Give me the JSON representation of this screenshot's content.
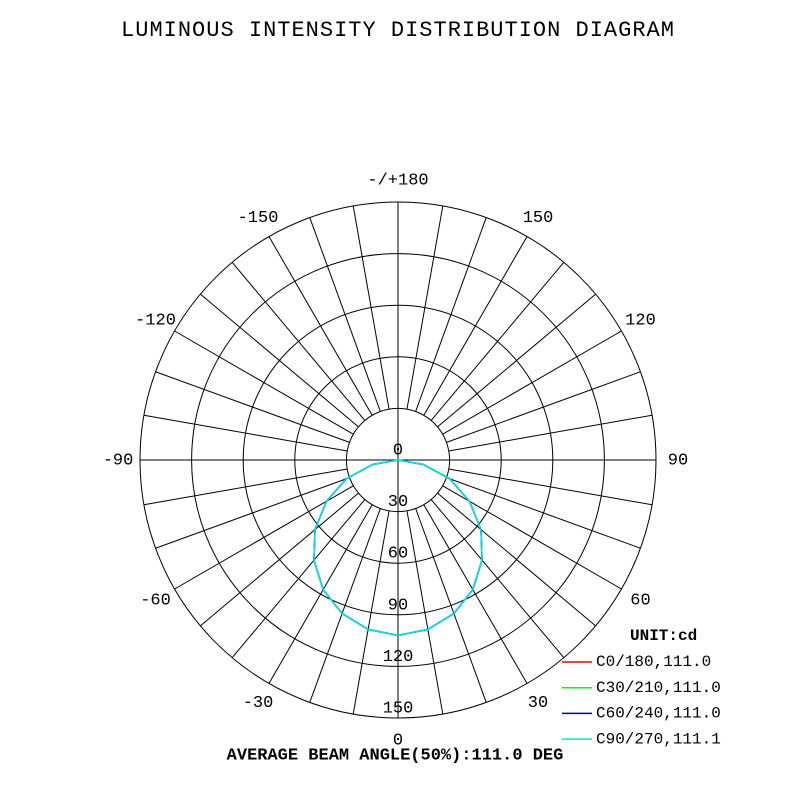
{
  "chart_data": {
    "type": "polar",
    "title": "LUMINOUS INTENSITY DISTRIBUTION DIAGRAM",
    "unit_label": "UNIT:cd",
    "footer": "AVERAGE BEAM ANGLE(50%):111.0 DEG",
    "angles": [
      -90,
      -80,
      -70,
      -60,
      -50,
      -40,
      -30,
      -20,
      -10,
      0,
      10,
      20,
      30,
      40,
      50,
      60,
      70,
      80,
      90
    ],
    "series": [
      {
        "name": "C0/180,111.0",
        "color": "#ff0000",
        "values": [
          0,
          15,
          32,
          48,
          63,
          76,
          87,
          95,
          100,
          102,
          100,
          95,
          87,
          76,
          63,
          48,
          32,
          15,
          0
        ]
      },
      {
        "name": "C30/210,111.0",
        "color": "#00ff00",
        "values": [
          0,
          15,
          32,
          48,
          63,
          76,
          87,
          95,
          100,
          102,
          100,
          95,
          87,
          76,
          63,
          48,
          32,
          15,
          0
        ]
      },
      {
        "name": "C60/240,111.0",
        "color": "#0000cc",
        "values": [
          0,
          15,
          32,
          48,
          63,
          76,
          87,
          95,
          100,
          102,
          100,
          95,
          87,
          76,
          63,
          48,
          32,
          15,
          0
        ]
      },
      {
        "name": "C90/270,111.1",
        "color": "#00e5ee",
        "values": [
          0,
          15,
          32,
          48,
          63,
          76,
          87,
          95,
          100,
          102,
          100,
          95,
          87,
          76,
          63,
          48,
          32,
          15,
          0
        ]
      }
    ],
    "rlim": [
      0,
      150
    ],
    "rticks": [
      0,
      30,
      60,
      90,
      120,
      150
    ],
    "angle_ticks": [
      {
        "value": 180,
        "label": "-/+180"
      },
      {
        "value": -150,
        "label": "-150"
      },
      150,
      {
        "value": -120,
        "label": "-120"
      },
      120,
      {
        "value": -90,
        "label": "-90"
      },
      90,
      {
        "value": -60,
        "label": "-60"
      },
      60,
      {
        "value": -30,
        "label": "-30"
      },
      30,
      0
    ],
    "angle_grid_step": 10
  }
}
